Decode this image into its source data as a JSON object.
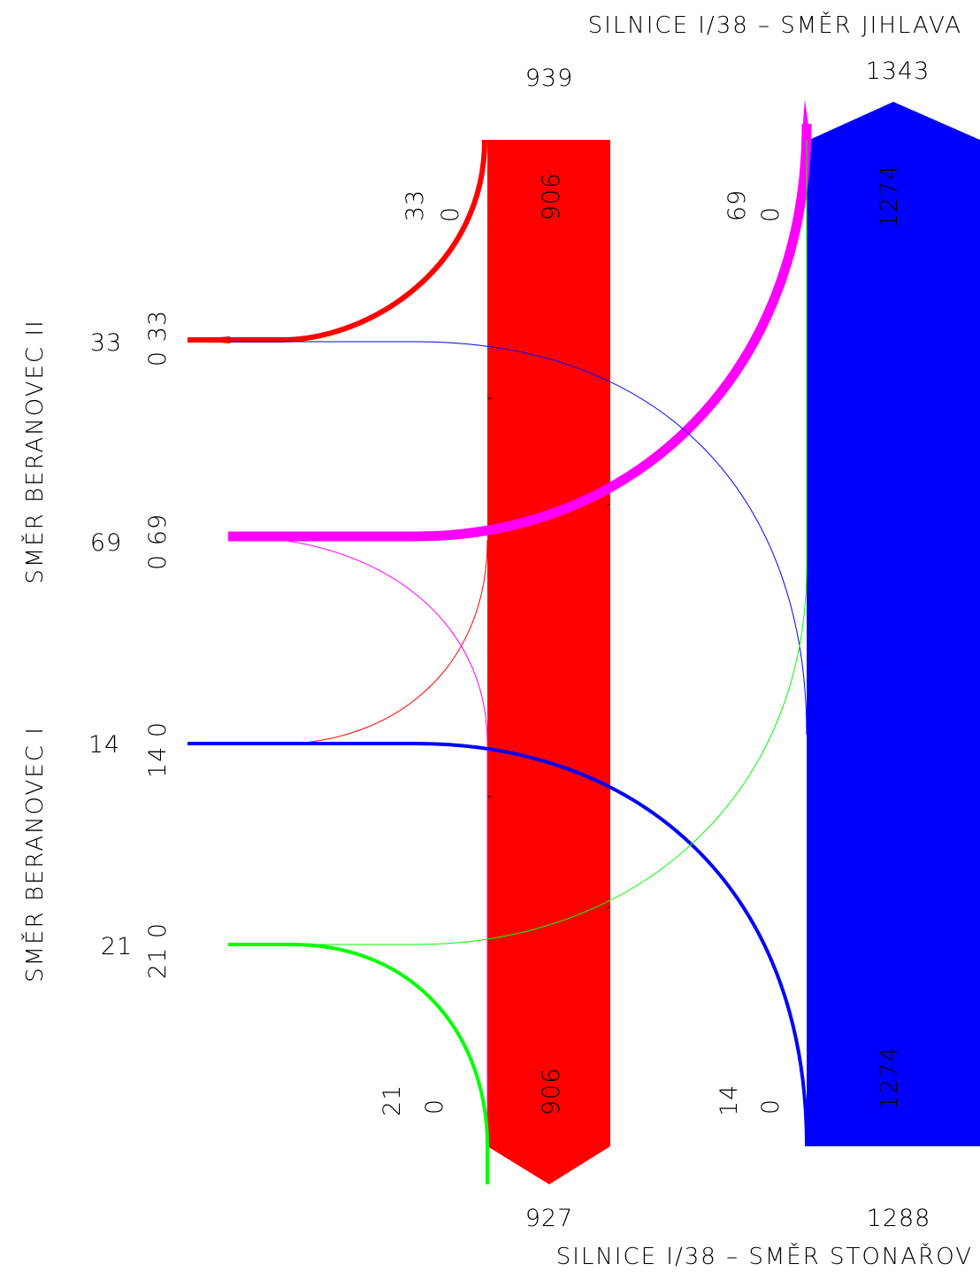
{
  "titles": {
    "top": "SILNICE I/38 – SMĚR JIHLAVA",
    "bottom": "SILNICE I/38 – SMĚR STONAŘOV",
    "left_upper": "SMĚR BERANOVEC II",
    "left_lower": "SMĚR BERANOVEC I"
  },
  "colors": {
    "red": "#ff0000",
    "blue": "#0000ff",
    "magenta": "#ff00ff",
    "green": "#00ff00"
  },
  "main_road": {
    "south_total_top": "939",
    "north_total_top": "1343",
    "south_total_bottom": "927",
    "north_total_bottom": "1288",
    "through_south_top": "906",
    "through_north_top": "1274",
    "through_south_bottom": "906",
    "through_north_bottom": "1274"
  },
  "turn_labels_top": {
    "red_right": "33",
    "red_zero": "0",
    "magenta_right": "69",
    "magenta_zero": "0"
  },
  "turn_labels_bottom": {
    "green_right": "21",
    "green_zero": "0",
    "blue_right": "14",
    "blue_zero": "0"
  },
  "side_roads": {
    "beranovec_ii_upper_total": "33",
    "beranovec_ii_upper_split": "0 33",
    "beranovec_ii_lower_total": "69",
    "beranovec_ii_lower_split": "0 69",
    "beranovec_i_upper_total": "14",
    "beranovec_i_upper_split": "14 0",
    "beranovec_i_lower_total": "21",
    "beranovec_i_lower_split": "21 0"
  }
}
